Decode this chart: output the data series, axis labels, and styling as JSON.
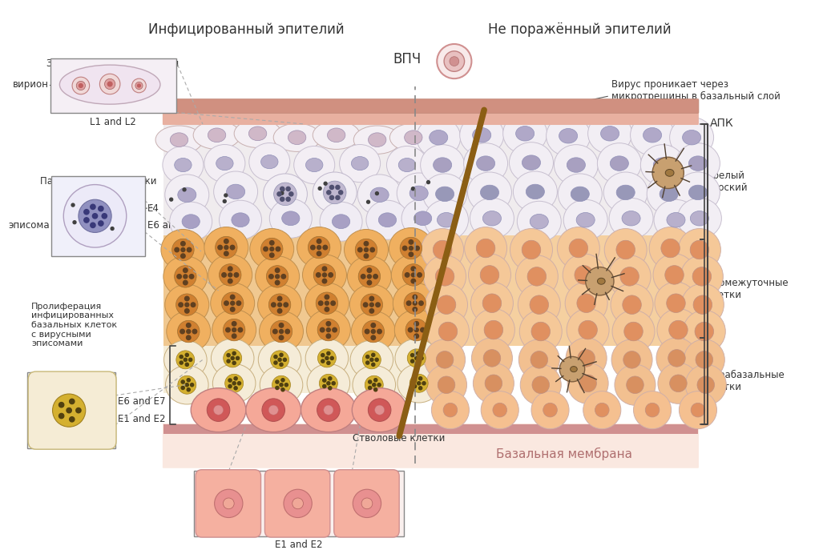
{
  "title_left": "Инфицированный эпителий",
  "title_right": "Не поражённый эпителий",
  "label_vpc": "ВПЧ",
  "label_virion": "вирион",
  "label_L1L2": "L1 and L2",
  "label_mature_flat": "Зрелый плоский эпителий",
  "label_parabasal": "Парабазальные клетки",
  "label_E4": "E4",
  "label_episoma": "эписома",
  "label_E6E7": "E6 and E7",
  "label_proliferation": "Пролиферация\nинфицированных\nбазальных клеток\nс вирусными\nэписомами",
  "label_E6E7_2": "E6 and E7",
  "label_E1E2": "E1 and E2",
  "label_E1E2_2": "E1 and E2",
  "label_stem": "Стволовые клетки",
  "label_basal_membrane": "Базальная мембрана",
  "label_virus_penetrates": "Вирус проникает через\nмикротрещины в базальный слой",
  "label_APK": "АПК",
  "label_mature_flat_right": "Зрелый\nплоский",
  "label_intermediate": "Промежуточные\nклетки",
  "label_parabasal_right": "Парабазальные\nклетки",
  "bg_color": "#ffffff",
  "basal_membrane_color": "#fae8e0",
  "membrane_stripe_color": "#d4908a",
  "text_color": "#333333",
  "brown_line_color": "#8B5E14"
}
